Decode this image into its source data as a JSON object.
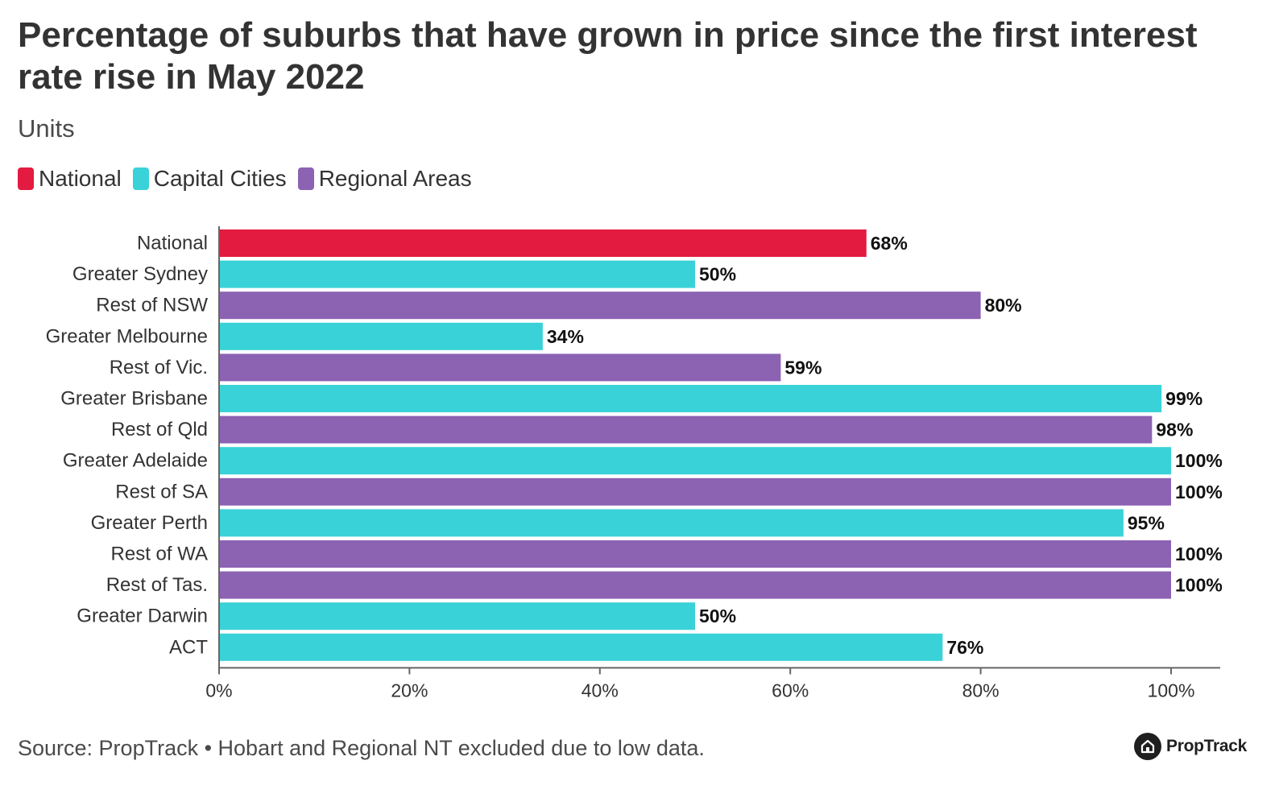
{
  "chart_data": {
    "type": "bar",
    "orientation": "horizontal",
    "title": "Percentage of suburbs that have grown in price since the first interest rate rise in May 2022",
    "subtitle": "Units",
    "categories": [
      "National",
      "Greater Sydney",
      "Rest of NSW",
      "Greater Melbourne",
      "Rest of Vic.",
      "Greater Brisbane",
      "Rest of Qld",
      "Greater Adelaide",
      "Rest of SA",
      "Greater Perth",
      "Rest of WA",
      "Rest of Tas.",
      "Greater Darwin",
      "ACT"
    ],
    "values": [
      68,
      50,
      80,
      34,
      59,
      99,
      98,
      100,
      100,
      95,
      100,
      100,
      50,
      76
    ],
    "value_labels": [
      "68%",
      "50%",
      "80%",
      "34%",
      "59%",
      "99%",
      "98%",
      "100%",
      "100%",
      "95%",
      "100%",
      "100%",
      "50%",
      "76%"
    ],
    "groups": [
      "National",
      "Capital Cities",
      "Regional Areas",
      "Capital Cities",
      "Regional Areas",
      "Capital Cities",
      "Regional Areas",
      "Capital Cities",
      "Regional Areas",
      "Capital Cities",
      "Regional Areas",
      "Regional Areas",
      "Capital Cities",
      "Capital Cities"
    ],
    "legend": [
      {
        "name": "National",
        "color": "#e31b41"
      },
      {
        "name": "Capital Cities",
        "color": "#39d2d8"
      },
      {
        "name": "Regional Areas",
        "color": "#8c62b3"
      }
    ],
    "xlim": [
      0,
      100
    ],
    "xticks": [
      0,
      20,
      40,
      60,
      80,
      100
    ],
    "xtick_labels": [
      "0%",
      "20%",
      "40%",
      "60%",
      "80%",
      "100%"
    ],
    "xlabel": "",
    "ylabel": "",
    "grid": false,
    "legend_position": "top-left"
  },
  "footer": {
    "source": "Source: PropTrack • Hobart and Regional NT excluded due to low data.",
    "logo_text": "PropTrack"
  },
  "colors": {
    "text": "#333333",
    "axis": "#666666"
  }
}
